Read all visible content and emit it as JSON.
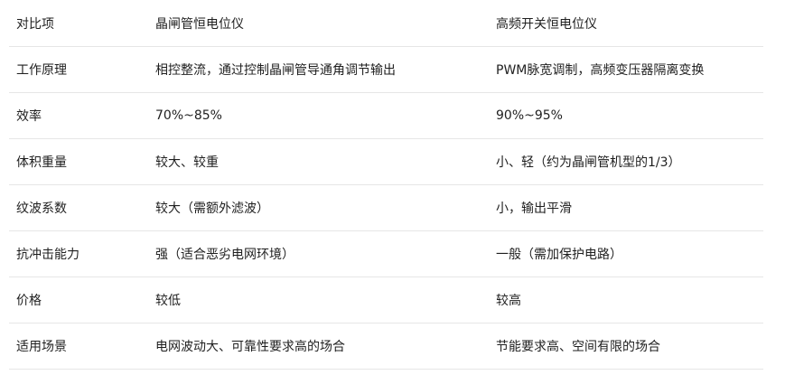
{
  "table": {
    "headers": [
      "对比项",
      "晶闸管恒电位仪",
      "高频开关恒电位仪"
    ],
    "rows": [
      [
        "工作原理",
        "相控整流，通过控制晶闸管导通角调节输出",
        "PWM脉宽调制，高频变压器隔离变换"
      ],
      [
        "效率",
        "70%~85%",
        "90%~95%"
      ],
      [
        "体积重量",
        "较大、较重",
        "小、轻（约为晶闸管机型的1/3）"
      ],
      [
        "纹波系数",
        "较大（需额外滤波）",
        "小，输出平滑"
      ],
      [
        "抗冲击能力",
        "强（适合恶劣电网环境）",
        "一般（需加保护电路）"
      ],
      [
        "价格",
        "较低",
        "较高"
      ],
      [
        "适用场景",
        "电网波动大、可靠性要求高的场合",
        "节能要求高、空间有限的场合"
      ]
    ]
  }
}
